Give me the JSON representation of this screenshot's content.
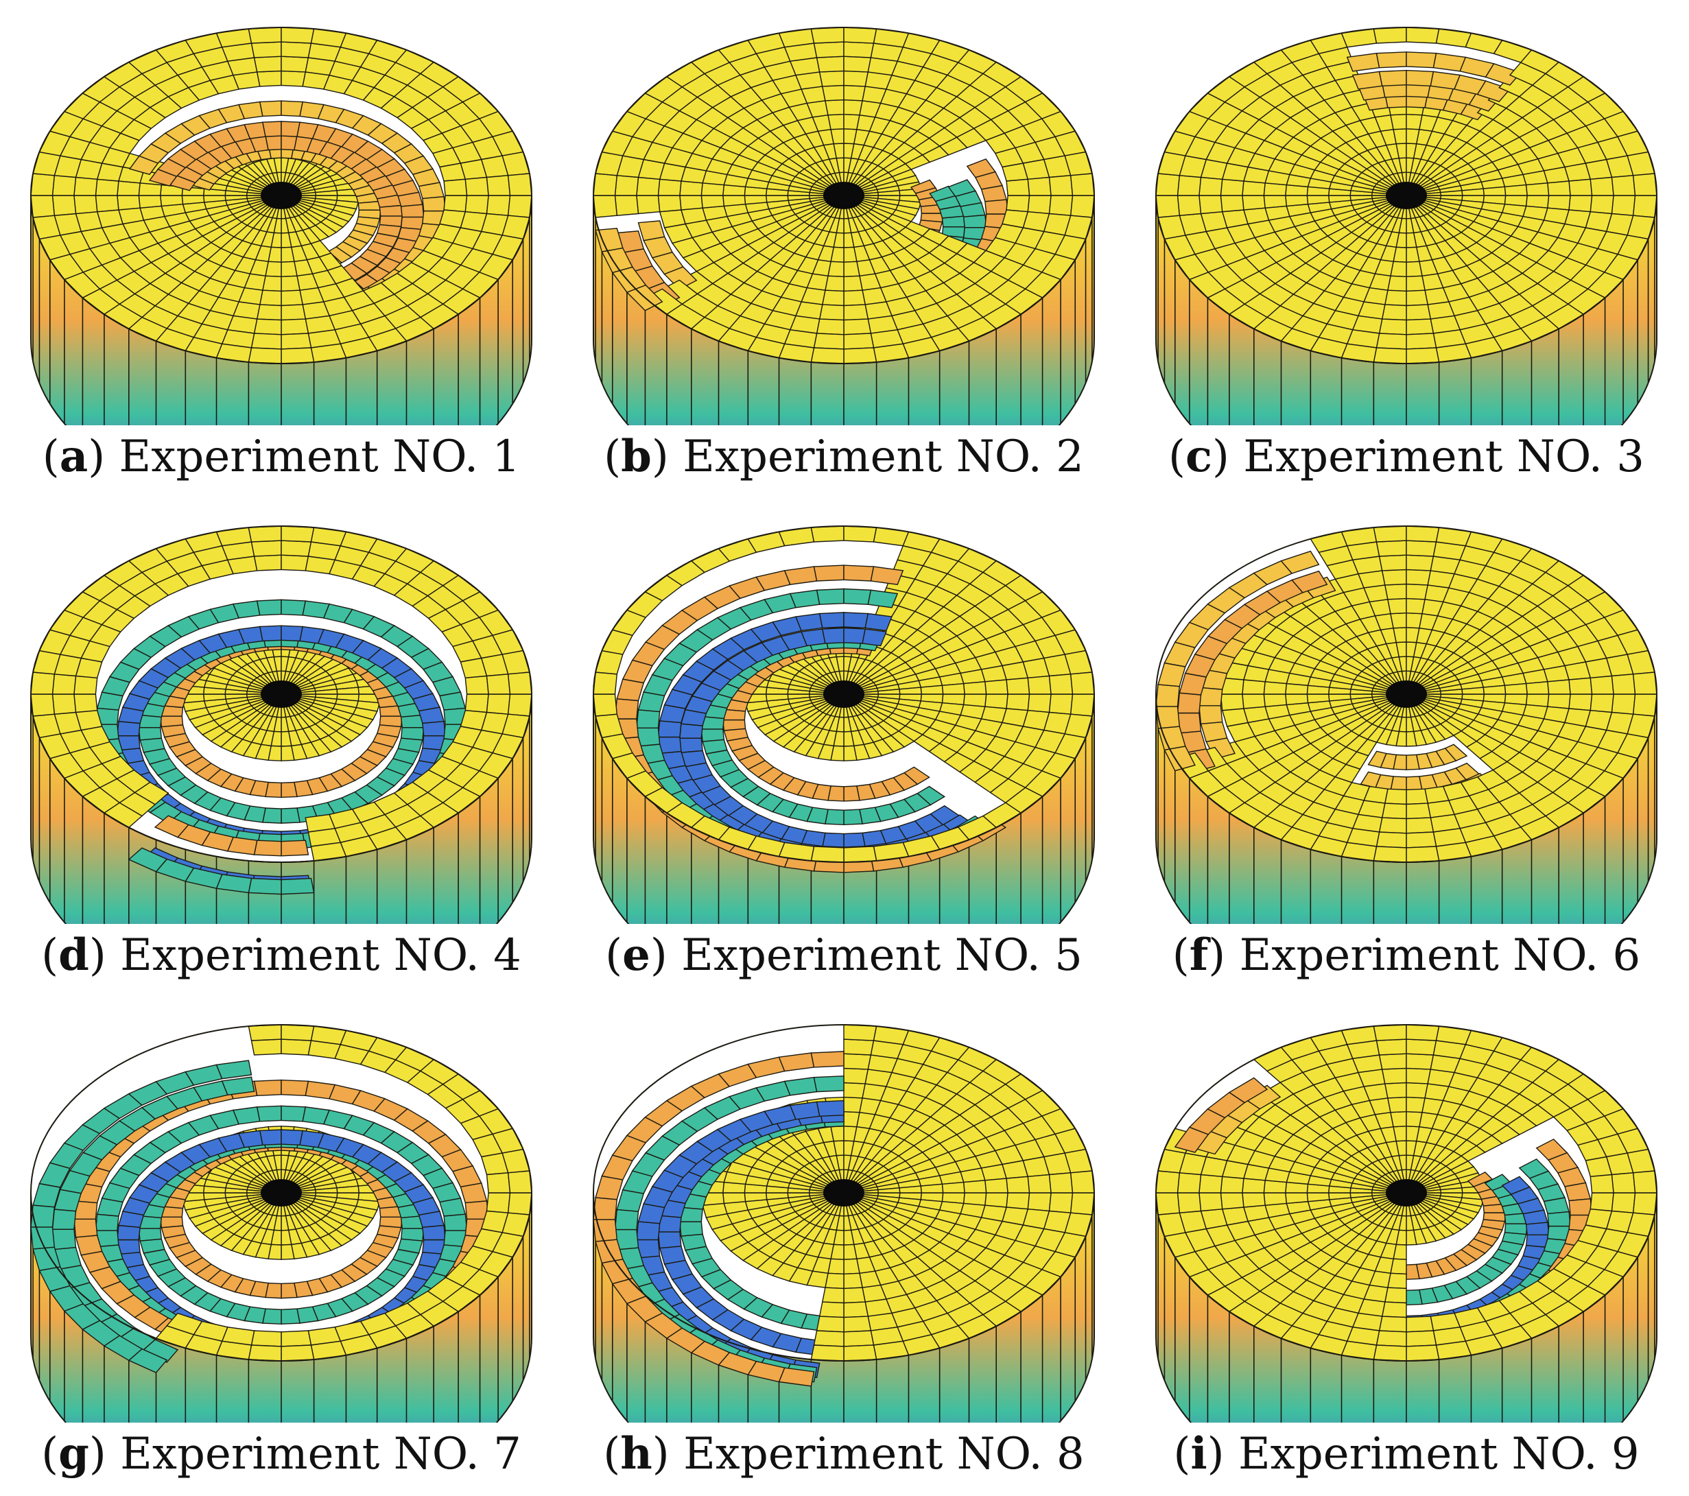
{
  "figure": {
    "panels": [
      {
        "letter": "a",
        "label": "Experiment NO. 1",
        "surface": [
          {
            "start": 200,
            "end": 420,
            "inner": 0.3,
            "outer": 0.68,
            "depth": 0.5
          }
        ]
      },
      {
        "letter": "b",
        "label": "Experiment NO. 2",
        "surface": [
          {
            "start": 330,
            "end": 390,
            "inner": 0.35,
            "outer": 0.62,
            "depth": 0.8
          },
          {
            "start": 145,
            "end": 175,
            "inner": 0.78,
            "outer": 1.0,
            "depth": 0.4
          }
        ]
      },
      {
        "letter": "c",
        "label": "Experiment NO. 3",
        "surface": [
          {
            "start": 255,
            "end": 300,
            "inner": 0.6,
            "outer": 0.95,
            "depth": 0.3
          }
        ]
      },
      {
        "letter": "d",
        "label": "Experiment NO. 4",
        "surface": [
          {
            "start": 0,
            "end": 360,
            "inner": 0.42,
            "outer": 0.78,
            "depth": 0.9
          },
          {
            "start": 85,
            "end": 125,
            "inner": 0.78,
            "outer": 1.0,
            "depth": 1.0
          }
        ]
      },
      {
        "letter": "e",
        "label": "Experiment NO. 5",
        "surface": [
          {
            "start": 45,
            "end": 285,
            "inner": 0.4,
            "outer": 0.9,
            "depth": 1.0
          }
        ]
      },
      {
        "letter": "f",
        "label": "Experiment NO. 6",
        "surface": [
          {
            "start": 160,
            "end": 250,
            "inner": 0.75,
            "outer": 1.0,
            "depth": 0.4
          },
          {
            "start": 50,
            "end": 110,
            "inner": 0.35,
            "outer": 0.6,
            "depth": 0.4
          }
        ]
      },
      {
        "letter": "g",
        "label": "Experiment NO. 7",
        "surface": [
          {
            "start": 0,
            "end": 360,
            "inner": 0.42,
            "outer": 0.82,
            "depth": 1.0
          },
          {
            "start": 120,
            "end": 260,
            "inner": 0.82,
            "outer": 1.0,
            "depth": 1.0
          }
        ]
      },
      {
        "letter": "h",
        "label": "Experiment NO. 8",
        "surface": [
          {
            "start": 95,
            "end": 270,
            "inner": 0.55,
            "outer": 1.0,
            "depth": 1.0
          }
        ]
      },
      {
        "letter": "i",
        "label": "Experiment NO. 9",
        "surface": [
          {
            "start": -40,
            "end": 90,
            "inner": 0.35,
            "outer": 0.72,
            "depth": 0.9
          },
          {
            "start": 200,
            "end": 230,
            "inner": 0.85,
            "outer": 1.0,
            "depth": 0.5
          }
        ]
      }
    ],
    "colors": {
      "top": "#f2e33a",
      "wall_top": "#f5e236",
      "wall_mid": "#f0a84a",
      "wall_low": "#3fbfa0",
      "wall_bottom": "#4a35d8",
      "grid": "#1c1a12",
      "hub": "#0a0a0a"
    }
  }
}
